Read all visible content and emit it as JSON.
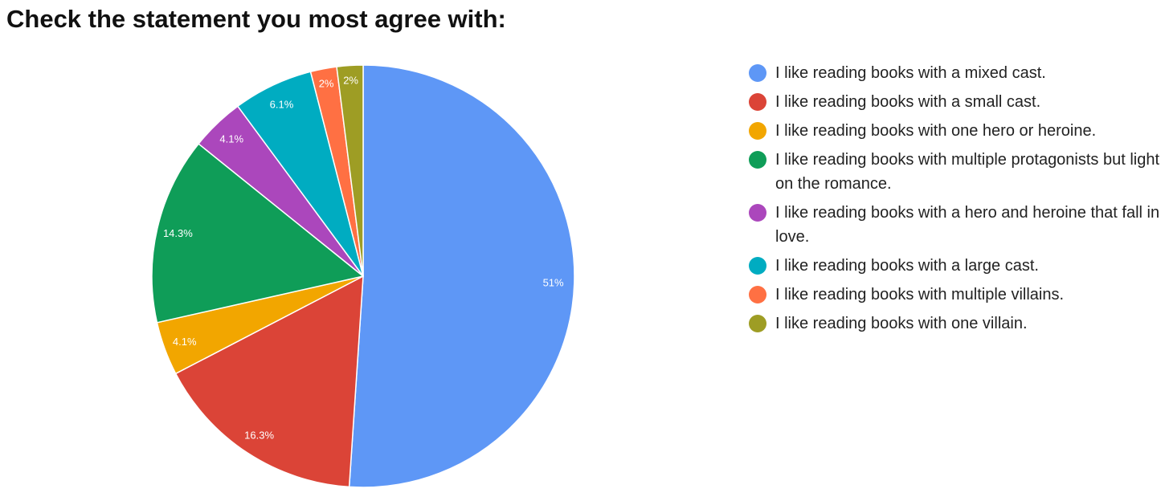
{
  "chart_data": {
    "type": "pie",
    "title": "Check the statement you most agree with:",
    "slices": [
      {
        "label": "I like reading books with a mixed cast.",
        "value": 51,
        "value_label": "51%",
        "color": "#5e97f6"
      },
      {
        "label": "I like reading books with a small cast.",
        "value": 16.3,
        "value_label": "16.3%",
        "color": "#db4437"
      },
      {
        "label": "I like reading books with one hero or heroine.",
        "value": 4.1,
        "value_label": "4.1%",
        "color": "#f2a600"
      },
      {
        "label": "I like reading books with multiple protagonists but light on the romance.",
        "value": 14.3,
        "value_label": "14.3%",
        "color": "#0f9d58"
      },
      {
        "label": "I like reading books with a hero and heroine that fall in love.",
        "value": 4.1,
        "value_label": "4.1%",
        "color": "#ab47bc"
      },
      {
        "label": "I like reading books with a large cast.",
        "value": 6.1,
        "value_label": "6.1%",
        "color": "#00acc1"
      },
      {
        "label": "I like reading books with multiple villains.",
        "value": 2,
        "value_label": "2%",
        "color": "#ff7043"
      },
      {
        "label": "I like reading books with one villain.",
        "value": 2,
        "value_label": "2%",
        "color": "#9e9d24"
      }
    ],
    "legend_position": "right",
    "start_angle": "top",
    "direction": "clockwise"
  }
}
